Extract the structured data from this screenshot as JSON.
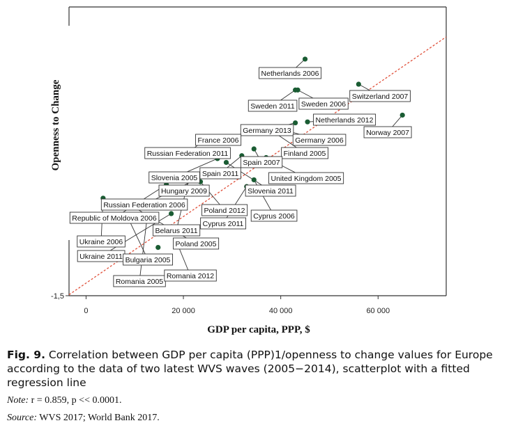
{
  "chart_data": {
    "type": "scatter",
    "xlabel": "GDP per capita, PPP, $",
    "ylabel": "Openness to Change",
    "x_ticks": [
      0,
      20000,
      40000,
      60000
    ],
    "x_tick_labels": [
      "0",
      "20 000",
      "40 000",
      "60 000"
    ],
    "y_tick_labels": [
      "-1,5"
    ],
    "y_tick_values": [
      -1.5
    ],
    "xlim": [
      -3500,
      74000
    ],
    "ylim": [
      -1.5,
      1.49
    ],
    "grid": false,
    "fit_line": {
      "label": "",
      "x": [
        -3500,
        74000
      ],
      "y": [
        -1.49,
        1.18
      ]
    },
    "points": [
      {
        "label": "Netherlands 2006",
        "x": 45000,
        "y": 0.95
      },
      {
        "label": "Switzerland 2007",
        "x": 56000,
        "y": 0.69
      },
      {
        "label": "Sweden 2011",
        "x": 43000,
        "y": 0.63
      },
      {
        "label": "Sweden 2006",
        "x": 43500,
        "y": 0.63
      },
      {
        "label": "Norway 2007",
        "x": 65000,
        "y": 0.37
      },
      {
        "label": "Netherlands 2012",
        "x": 45500,
        "y": 0.3
      },
      {
        "label": "Germany 2013",
        "x": 43000,
        "y": 0.29
      },
      {
        "label": "France 2006",
        "x": 37000,
        "y": 0.24
      },
      {
        "label": "Germany 2006",
        "x": 39000,
        "y": 0.24
      },
      {
        "label": "Finland 2005",
        "x": 39000,
        "y": 0.18
      },
      {
        "label": "Russian Federation 2011",
        "x": 24000,
        "y": 0.1
      },
      {
        "label": "Spain 2007",
        "x": 34500,
        "y": 0.02
      },
      {
        "label": "Spain 2011",
        "x": 32000,
        "y": -0.05
      },
      {
        "label": "Slovenia 2005",
        "x": 27000,
        "y": -0.08
      },
      {
        "label": "United Kingdom 2005",
        "x": 37000,
        "y": -0.07
      },
      {
        "label": "Slovenia 2011",
        "x": 28800,
        "y": -0.12
      },
      {
        "label": "Hungary 2009",
        "x": 22000,
        "y": -0.24
      },
      {
        "label": "Russian Federation 2006",
        "x": 24500,
        "y": -0.25
      },
      {
        "label": "Poland 2012",
        "x": 23500,
        "y": -0.32
      },
      {
        "label": "Belarus 2011",
        "x": 21000,
        "y": -0.31
      },
      {
        "label": "Cyprus 2006",
        "x": 34500,
        "y": -0.3
      },
      {
        "label": "Cyprus 2011",
        "x": 33000,
        "y": -0.37
      },
      {
        "label": "Republic of Moldova 2006",
        "x": 16500,
        "y": -0.35
      },
      {
        "label": "Ukraine 2006",
        "x": 3500,
        "y": -0.49
      },
      {
        "label": "Poland 2005",
        "x": 8000,
        "y": -0.53
      },
      {
        "label": "Ukraine 2011",
        "x": 17500,
        "y": -0.65
      },
      {
        "label": "Bulgaria 2005",
        "x": 8500,
        "y": -0.68
      },
      {
        "label": "Romania 2005",
        "x": 12500,
        "y": -0.71
      },
      {
        "label": "Romania 2012",
        "x": 18500,
        "y": -0.93
      },
      {
        "label": "",
        "x": 14800,
        "y": -1.0
      }
    ]
  },
  "caption": {
    "label": "Fig. 9.",
    "text": "Correlation between GDP per capita (PPP)1/openness to change values for Europe according to the data of two latest WVS waves (2005−2014), scat­terplot with a fitted regression line"
  },
  "note": {
    "label": "Note:",
    "text": "r = 0.859, p << 0.0001."
  },
  "source": {
    "label": "Source:",
    "text": "WVS 2017; World Bank 2017."
  },
  "colors": {
    "point": "#1a5c33",
    "fit_line": "#e0503a",
    "axis": "#333333",
    "label_border": "#333333"
  }
}
